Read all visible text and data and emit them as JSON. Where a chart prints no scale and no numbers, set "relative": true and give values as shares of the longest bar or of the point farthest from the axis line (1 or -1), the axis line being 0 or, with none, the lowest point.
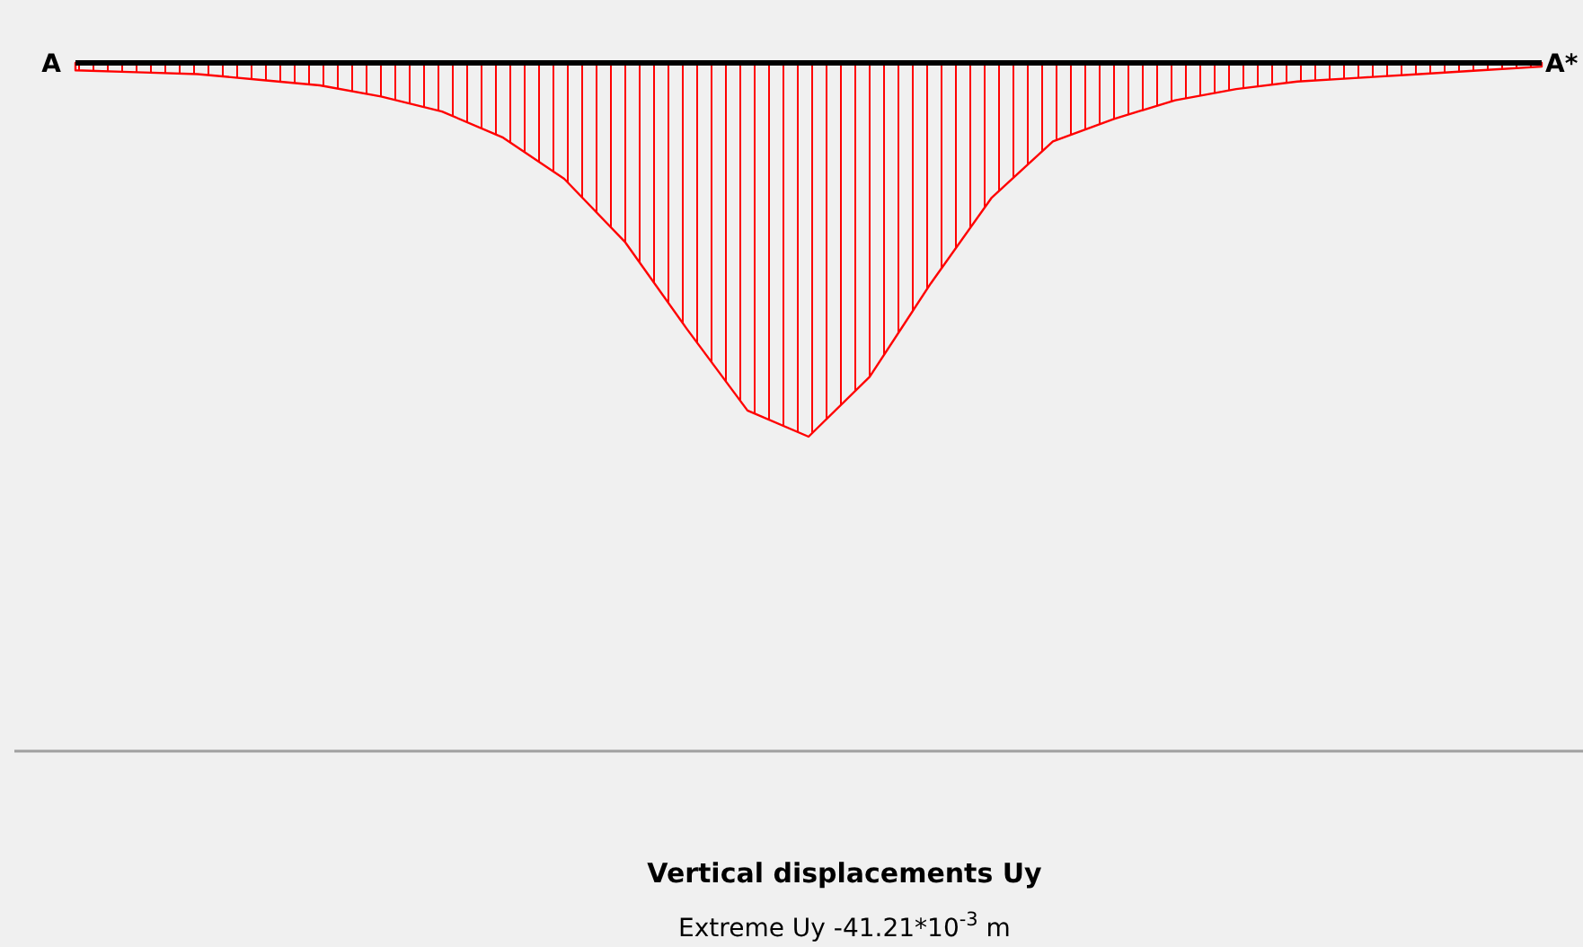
{
  "chart_data": {
    "type": "area",
    "relative": true,
    "title": "Vertical displacements Uy",
    "annotations": [
      "A",
      "A*",
      "Extreme Uy -41.21*10$^{-3}$ m"
    ],
    "color": "#ff0000",
    "categories": [
      null,
      null,
      null,
      null,
      null,
      null,
      null,
      null,
      null,
      null,
      null,
      null,
      null,
      null,
      null,
      null,
      null,
      null,
      null,
      null,
      null,
      null,
      null,
      null,
      null
    ],
    "values": [
      -0.02,
      -0.025,
      -0.03,
      -0.045,
      -0.06,
      -0.09,
      -0.13,
      -0.2,
      -0.31,
      -0.48,
      -0.71,
      -0.93,
      -1,
      -0.84,
      -0.59,
      -0.36,
      -0.21,
      -0.15,
      -0.1,
      -0.07,
      -0.05,
      -0.04,
      -0.03,
      -0.02,
      -0.01
    ]
  }
}
